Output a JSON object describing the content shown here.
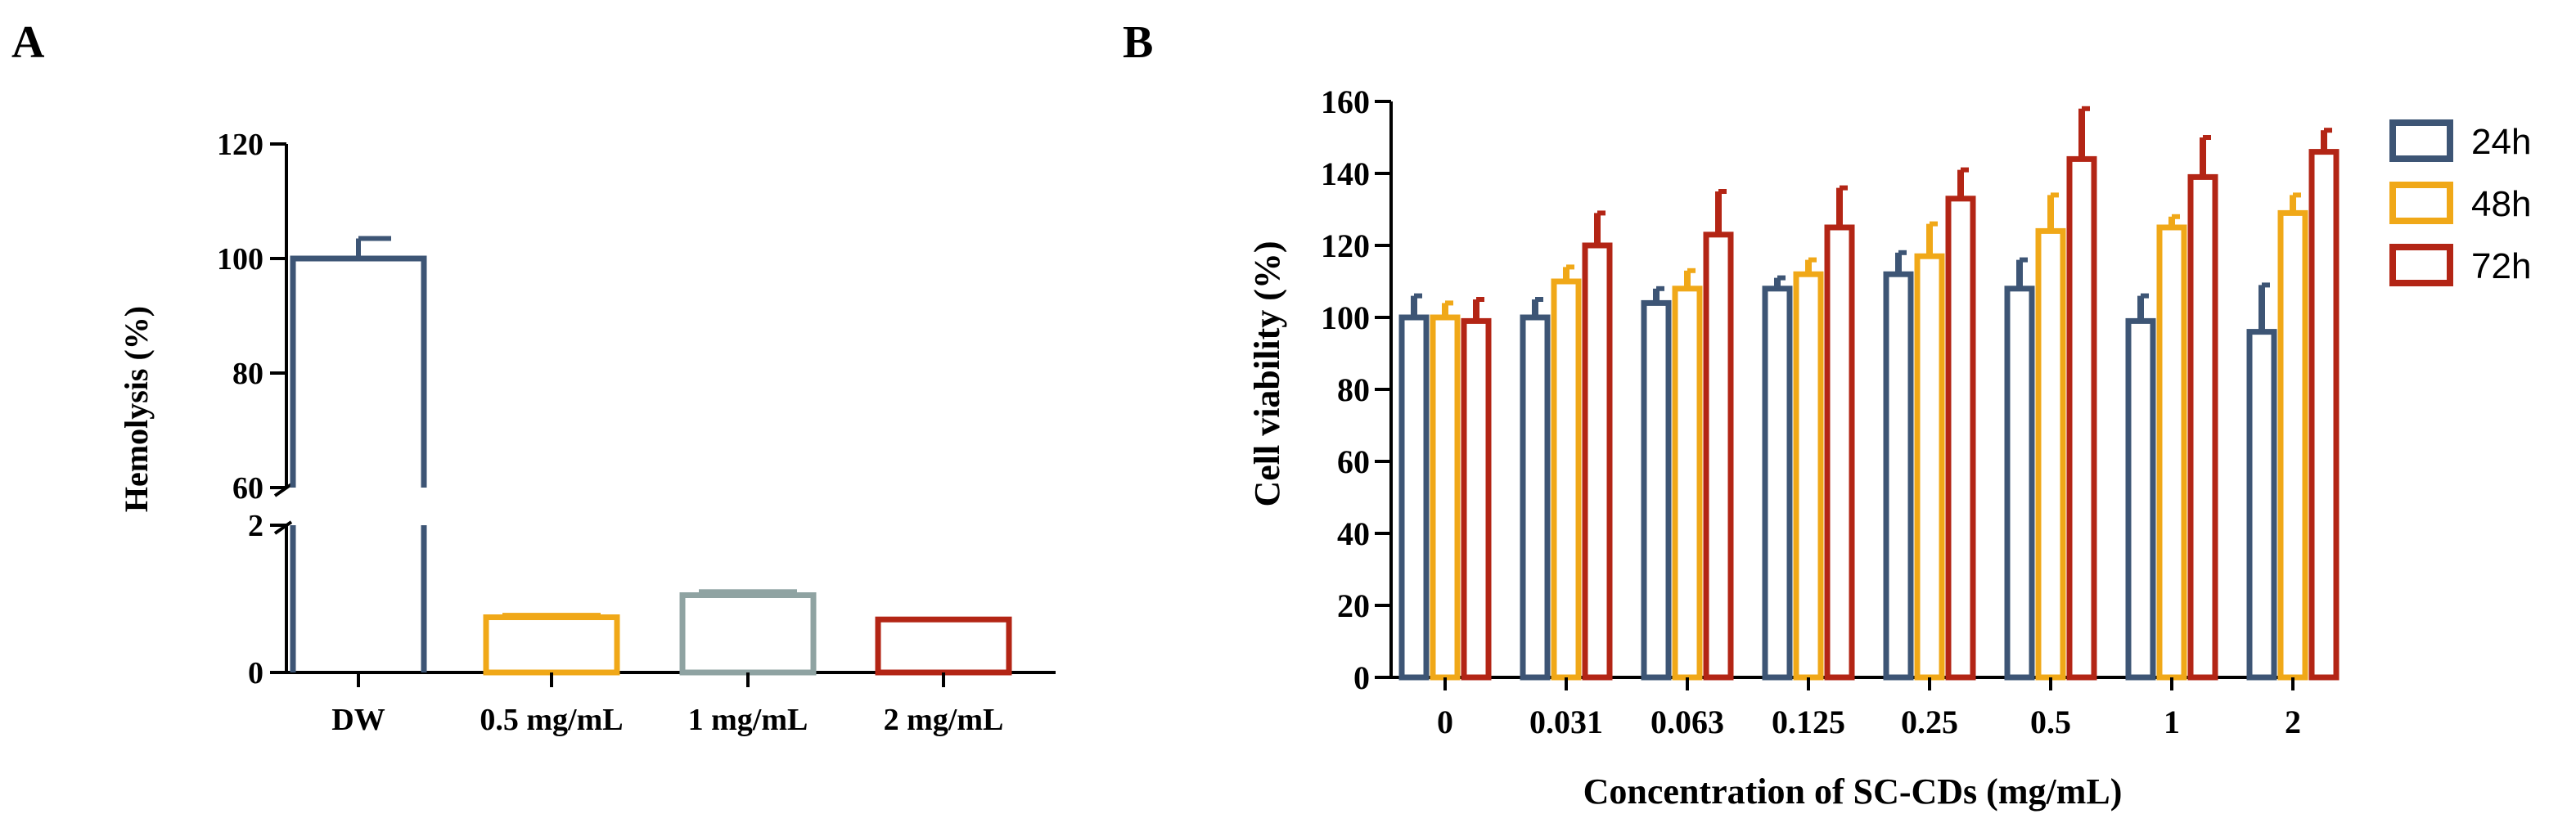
{
  "panels": {
    "a": "A",
    "b": "B"
  },
  "colors": {
    "c24": "#3d5575",
    "c48": "#f0a818",
    "c72": "#b32515",
    "gray": "#8fa3a2",
    "axis": "#000000"
  },
  "chart_data": [
    {
      "type": "bar",
      "panel": "A",
      "ylabel": "Hemolysis (%)",
      "xlabel": "",
      "y_axis_break": {
        "lower_range": [
          0,
          2
        ],
        "upper_range": [
          60,
          120
        ]
      },
      "yticks_lower": [
        "0",
        "2"
      ],
      "yticks_upper": [
        "60",
        "80",
        "100",
        "120"
      ],
      "categories": [
        "DW",
        "0.5 mg/mL",
        "1 mg/mL",
        "2 mg/mL"
      ],
      "values": [
        100,
        0.75,
        1.05,
        0.72
      ],
      "errors": [
        3.5,
        0.06,
        0.08,
        0
      ],
      "bar_colors": [
        "#3d5575",
        "#f0a818",
        "#8fa3a2",
        "#b32515"
      ]
    },
    {
      "type": "bar",
      "panel": "B",
      "ylabel": "Cell viability (%)",
      "xlabel": "Concentration of SC-CDs (mg/mL)",
      "ylim": [
        0,
        160
      ],
      "yticks": [
        "0",
        "20",
        "40",
        "60",
        "80",
        "100",
        "120",
        "140",
        "160"
      ],
      "categories": [
        "0",
        "0.031",
        "0.063",
        "0.125",
        "0.25",
        "0.5",
        "1",
        "2"
      ],
      "legend_position": "top-right outside",
      "series": [
        {
          "name": "24h",
          "color": "#3d5575",
          "values": [
            100,
            100,
            104,
            108,
            112,
            108,
            99,
            96
          ],
          "errors": [
            6,
            5,
            4,
            3,
            6,
            8,
            7,
            13
          ]
        },
        {
          "name": "48h",
          "color": "#f0a818",
          "values": [
            100,
            110,
            108,
            112,
            117,
            124,
            125,
            129
          ],
          "errors": [
            4,
            4,
            5,
            4,
            9,
            10,
            3,
            5
          ]
        },
        {
          "name": "72h",
          "color": "#b32515",
          "values": [
            99,
            120,
            123,
            125,
            133,
            144,
            139,
            146
          ],
          "errors": [
            6,
            9,
            12,
            11,
            8,
            14,
            11,
            6
          ]
        }
      ]
    }
  ]
}
